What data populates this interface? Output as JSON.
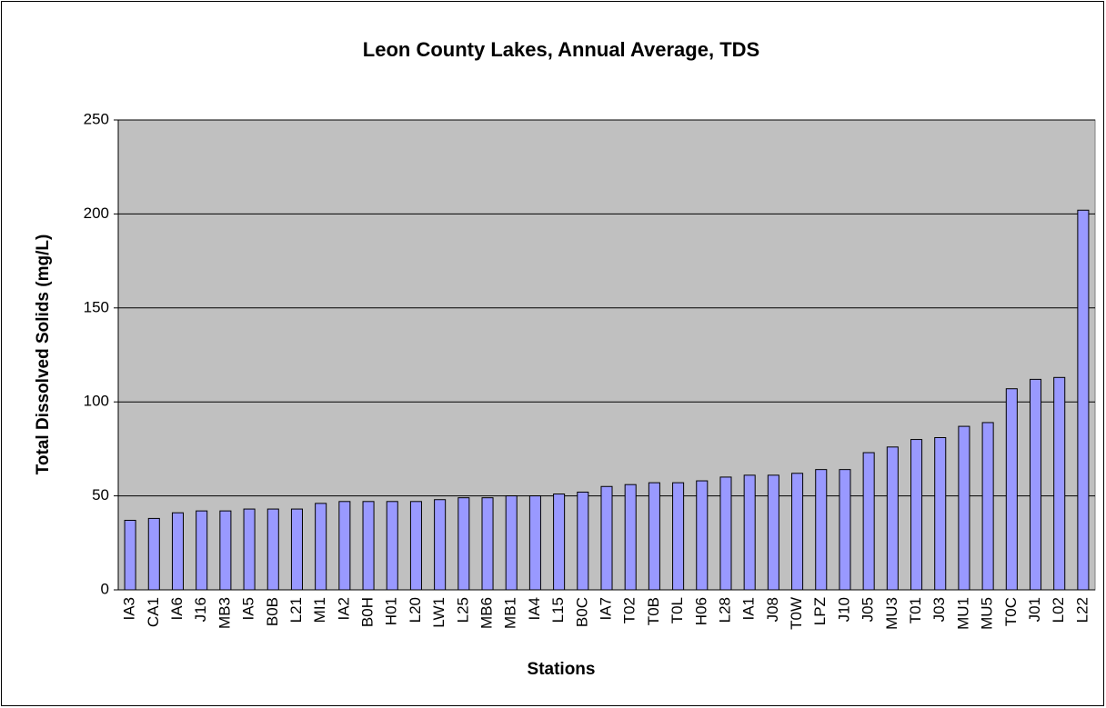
{
  "chart_data": {
    "type": "bar",
    "title": "Leon County Lakes, Annual Average, TDS",
    "x_label": "Stations",
    "y_label": "Total Dissolved Solids (mg/L)",
    "categories": [
      "IA3",
      "CA1",
      "IA6",
      "J16",
      "MB3",
      "IA5",
      "B0B",
      "L21",
      "MI1",
      "IA2",
      "B0H",
      "H01",
      "L20",
      "LW1",
      "L25",
      "MB6",
      "MB1",
      "IA4",
      "L15",
      "B0C",
      "IA7",
      "T02",
      "T0B",
      "T0L",
      "H06",
      "L28",
      "IA1",
      "J08",
      "T0W",
      "LPZ",
      "J10",
      "J05",
      "MU3",
      "T01",
      "J03",
      "MU1",
      "MU5",
      "T0C",
      "J01",
      "L02",
      "L22"
    ],
    "values": [
      37,
      38,
      41,
      42,
      42,
      43,
      43,
      43,
      46,
      47,
      47,
      47,
      47,
      48,
      49,
      49,
      50,
      50,
      51,
      52,
      55,
      56,
      57,
      57,
      58,
      60,
      61,
      61,
      62,
      64,
      64,
      73,
      76,
      80,
      81,
      87,
      89,
      107,
      112,
      113,
      202
    ],
    "color": "#9999ff",
    "ylim": [
      0,
      250
    ],
    "yticks": [
      0,
      50,
      100,
      150,
      200,
      250
    ],
    "grid": true
  }
}
